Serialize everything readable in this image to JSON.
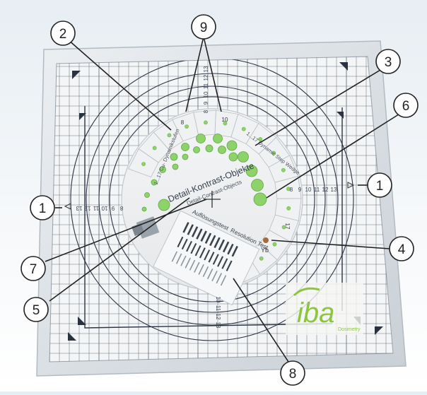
{
  "callouts": [
    "1",
    "2",
    "3",
    "4",
    "5",
    "6",
    "7",
    "8",
    "9"
  ],
  "phantom": {
    "title_de": "Detail-Kontrast-Objekte",
    "title_en": "Detail-Contrast-Objects",
    "steps_label": "1...17 Cu- Dynamikstufen",
    "wedge_label": "1...17 Dynamic Step Wedge",
    "resolution_de": "Auflösungstest",
    "resolution_en": "Resolution Test",
    "yb_label": "Yb",
    "step_first": "8",
    "step_ten": "10",
    "step_last": "17",
    "scale_top": [
      "8",
      "9",
      "10",
      "11",
      "12",
      "13"
    ],
    "scale_right": [
      "8",
      "9",
      "10",
      "11",
      "12",
      "13"
    ],
    "scale_bottom": [
      "10",
      "11",
      "12",
      "13"
    ],
    "scale_left": [
      "13",
      "12",
      "11",
      "10",
      "9",
      "8"
    ]
  },
  "logo": {
    "brand": "iba",
    "tagline": "Dosimetry",
    "color": "#8cc63f"
  },
  "colors": {
    "grid": "#505a64",
    "circles": "#2c3446",
    "green": "#8ed36a",
    "yb_marker": "#a36a3a",
    "callout_stroke": "#222222"
  }
}
